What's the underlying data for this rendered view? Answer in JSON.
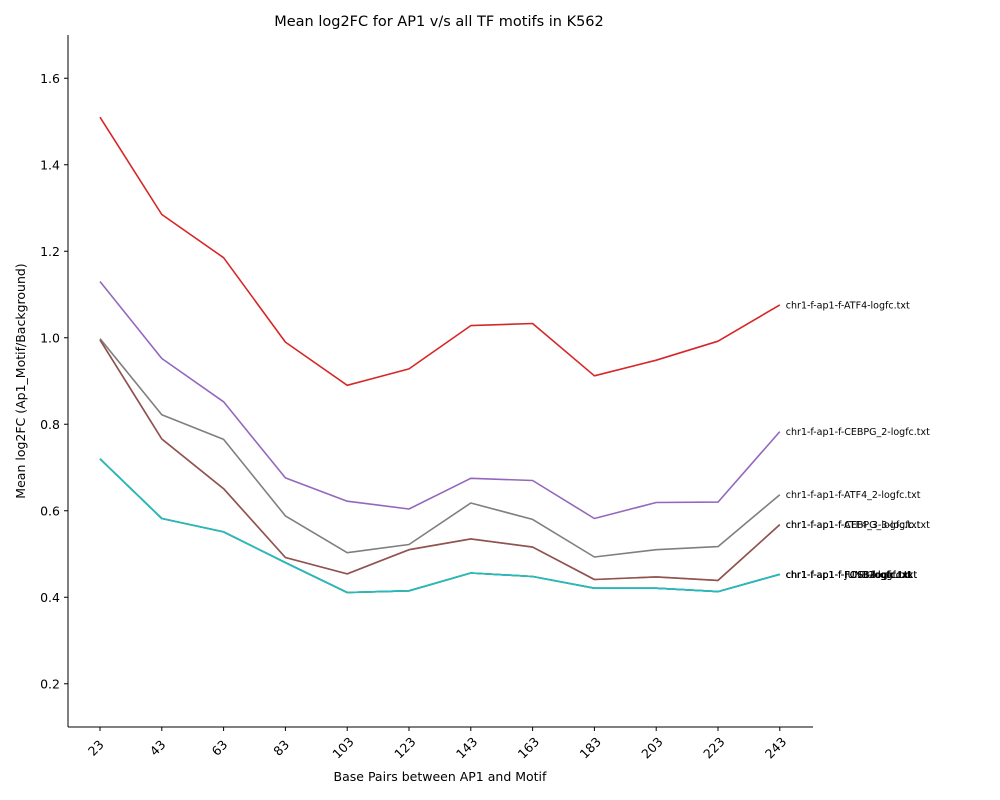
{
  "chart_data": {
    "type": "line",
    "title": "Mean log2FC for AP1 v/s all TF motifs in K562",
    "xlabel": "Base Pairs between AP1 and Motif",
    "ylabel": "Mean log2FC (Ap1_Motif/Background)",
    "ylim": [
      0.1,
      1.7
    ],
    "yticks": [
      0.2,
      0.4,
      0.6,
      0.8,
      1.0,
      1.2,
      1.4,
      1.6
    ],
    "categories": [
      "23",
      "43",
      "63",
      "83",
      "103",
      "123",
      "143",
      "163",
      "183",
      "203",
      "223",
      "243"
    ],
    "legend": "inline labels at line ends",
    "grid": false,
    "series": [
      {
        "name": "chr1-f-ap1-f-ATF4-logfc.txt",
        "color": "#d62728",
        "values": [
          1.51,
          1.285,
          1.185,
          0.99,
          0.89,
          0.928,
          1.028,
          1.033,
          0.912,
          0.948,
          0.992,
          1.076
        ]
      },
      {
        "name": "chr1-f-ap1-f-CEBPG_2-logfc.txt",
        "color": "#9467bd",
        "values": [
          1.13,
          0.952,
          0.852,
          0.676,
          0.622,
          0.604,
          0.675,
          0.67,
          0.582,
          0.619,
          0.62,
          0.783
        ]
      },
      {
        "name": "chr1-f-ap1-f-ATF4_2-logfc.txt",
        "color": "#7f7f7f",
        "values": [
          0.998,
          0.822,
          0.765,
          0.588,
          0.503,
          0.522,
          0.618,
          0.58,
          0.493,
          0.51,
          0.517,
          0.637
        ]
      },
      {
        "name": "chr1-f-ap1-f-CEBPG_3-logfc.txt",
        "color": "#e377c2",
        "values": [
          0.995,
          0.766,
          0.651,
          0.492,
          0.454,
          0.51,
          0.535,
          0.516,
          0.441,
          0.447,
          0.439,
          0.568
        ]
      },
      {
        "name": "chr1-f-ap1-f-ATF4_3-logfc.txt",
        "color": "#8c564b",
        "values": [
          0.995,
          0.766,
          0.651,
          0.492,
          0.454,
          0.51,
          0.535,
          0.516,
          0.441,
          0.447,
          0.439,
          0.568
        ]
      },
      {
        "name": "chr1-f-ap1-f-FOSB-logfc.txt",
        "color": "#bcbd22",
        "values": [
          0.72,
          0.582,
          0.551,
          0.48,
          0.411,
          0.415,
          0.456,
          0.448,
          0.421,
          0.421,
          0.413,
          0.453
        ]
      },
      {
        "name": "chr1-f-ap1-f-JUNB-logfc.txt",
        "color": "#1f77b4",
        "values": [
          0.72,
          0.582,
          0.551,
          0.48,
          0.411,
          0.415,
          0.456,
          0.448,
          0.421,
          0.421,
          0.413,
          0.453
        ]
      },
      {
        "name": "chr1-f-ap1-f-FOSL2-logfc.txt",
        "color": "#2ca02c",
        "values": [
          0.72,
          0.582,
          0.551,
          0.48,
          0.411,
          0.415,
          0.456,
          0.448,
          0.421,
          0.421,
          0.413,
          0.453
        ]
      },
      {
        "name": "chr1-f-ap1-f-JUND-logfc.txt",
        "color": "#ff7f0e",
        "values": [
          0.72,
          0.582,
          0.551,
          0.48,
          0.411,
          0.415,
          0.456,
          0.448,
          0.421,
          0.421,
          0.413,
          0.453
        ]
      },
      {
        "name": "chr1-f-ap1-f-FOSL1-logfc.txt",
        "color": "#17becf",
        "values": [
          0.72,
          0.582,
          0.551,
          0.48,
          0.411,
          0.415,
          0.456,
          0.448,
          0.421,
          0.421,
          0.413,
          0.453
        ]
      }
    ]
  }
}
